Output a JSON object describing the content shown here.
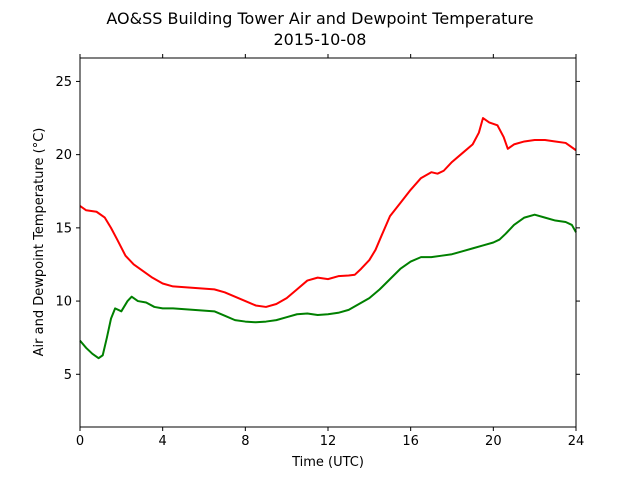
{
  "chart_data": {
    "type": "line",
    "title": "AO&SS Building Tower Air and Dewpoint Temperature",
    "subtitle": "2015-10-08",
    "xlabel": "Time (UTC)",
    "ylabel": "Air and Dewpoint Temperature (°C)",
    "xlim": [
      0,
      24
    ],
    "ylim": [
      1.4,
      26.6
    ],
    "xticks": [
      0,
      4,
      8,
      12,
      16,
      20,
      24
    ],
    "yticks": [
      5,
      10,
      15,
      20,
      25
    ],
    "grid": false,
    "series": [
      {
        "color": "#ff0000",
        "x": [
          0,
          0.3,
          0.8,
          1.2,
          1.5,
          1.8,
          2.2,
          2.6,
          3.0,
          3.5,
          4.0,
          4.5,
          5.0,
          5.5,
          6.0,
          6.5,
          7.0,
          7.5,
          8.0,
          8.5,
          9.0,
          9.5,
          10.0,
          10.5,
          11.0,
          11.5,
          12.0,
          12.5,
          13.0,
          13.3,
          13.6,
          14.0,
          14.3,
          14.6,
          15.0,
          15.5,
          16.0,
          16.5,
          17.0,
          17.3,
          17.6,
          18.0,
          18.5,
          19.0,
          19.3,
          19.5,
          19.8,
          20.2,
          20.5,
          20.7,
          21.0,
          21.5,
          22.0,
          22.5,
          23.0,
          23.5,
          24.0
        ],
        "y": [
          16.5,
          16.2,
          16.1,
          15.7,
          15.0,
          14.2,
          13.1,
          12.5,
          12.1,
          11.6,
          11.2,
          11.0,
          10.95,
          10.9,
          10.85,
          10.8,
          10.6,
          10.3,
          10.0,
          9.7,
          9.6,
          9.8,
          10.2,
          10.8,
          11.4,
          11.6,
          11.5,
          11.7,
          11.75,
          11.8,
          12.2,
          12.8,
          13.5,
          14.5,
          15.8,
          16.7,
          17.6,
          18.4,
          18.8,
          18.7,
          18.9,
          19.5,
          20.1,
          20.7,
          21.5,
          22.5,
          22.2,
          22.0,
          21.2,
          20.4,
          20.7,
          20.9,
          21.0,
          21.0,
          20.9,
          20.8,
          20.3
        ]
      },
      {
        "color": "#008000",
        "x": [
          0,
          0.3,
          0.6,
          0.9,
          1.1,
          1.3,
          1.5,
          1.7,
          2.0,
          2.3,
          2.5,
          2.8,
          3.2,
          3.6,
          4.0,
          4.5,
          5.0,
          5.5,
          6.0,
          6.5,
          7.0,
          7.5,
          8.0,
          8.5,
          9.0,
          9.5,
          10.0,
          10.5,
          11.0,
          11.5,
          12.0,
          12.5,
          13.0,
          13.5,
          14.0,
          14.5,
          15.0,
          15.5,
          16.0,
          16.5,
          17.0,
          17.5,
          18.0,
          18.5,
          19.0,
          19.5,
          20.0,
          20.3,
          20.6,
          21.0,
          21.5,
          22.0,
          22.5,
          23.0,
          23.5,
          23.8,
          24.0
        ],
        "y": [
          7.3,
          6.8,
          6.4,
          6.1,
          6.3,
          7.5,
          8.8,
          9.5,
          9.3,
          10.0,
          10.3,
          10.0,
          9.9,
          9.6,
          9.5,
          9.5,
          9.45,
          9.4,
          9.35,
          9.3,
          9.0,
          8.7,
          8.6,
          8.55,
          8.6,
          8.7,
          8.9,
          9.1,
          9.15,
          9.05,
          9.1,
          9.2,
          9.4,
          9.8,
          10.2,
          10.8,
          11.5,
          12.2,
          12.7,
          13.0,
          13.0,
          13.1,
          13.2,
          13.4,
          13.6,
          13.8,
          14.0,
          14.2,
          14.6,
          15.2,
          15.7,
          15.9,
          15.7,
          15.5,
          15.4,
          15.2,
          14.7
        ]
      }
    ]
  }
}
